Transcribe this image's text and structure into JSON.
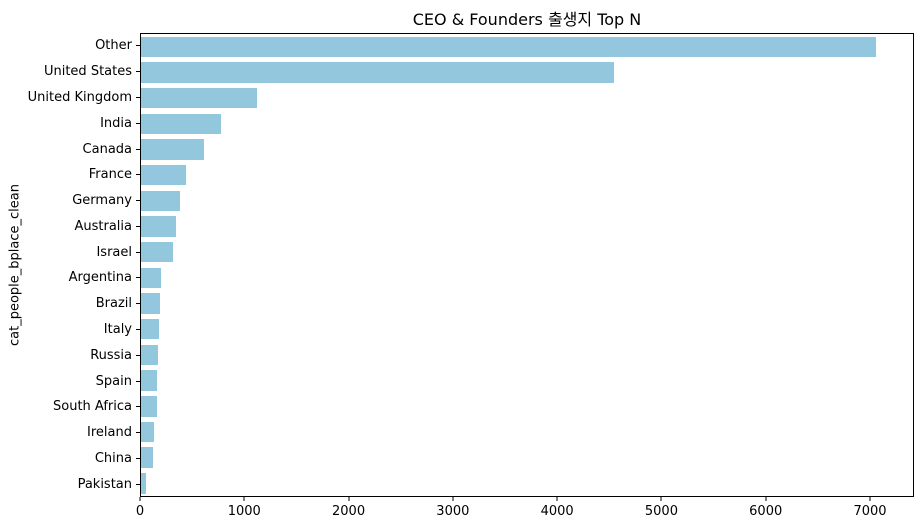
{
  "figure": {
    "background": "#ffffff",
    "axis_color": "#000000",
    "text_color": "#000000"
  },
  "chart_data": {
    "type": "bar",
    "orientation": "horizontal",
    "title": "CEO & Founders 출생지 Top N",
    "xlabel": "",
    "ylabel": "cat_people_bplace_clean",
    "categories": [
      "Other",
      "United States",
      "United Kingdom",
      "India",
      "Canada",
      "France",
      "Germany",
      "Australia",
      "Israel",
      "Argentina",
      "Brazil",
      "Italy",
      "Russia",
      "Spain",
      "South Africa",
      "Ireland",
      "China",
      "Pakistan"
    ],
    "values": [
      7070,
      4550,
      1120,
      770,
      605,
      430,
      375,
      335,
      310,
      195,
      185,
      175,
      165,
      155,
      150,
      125,
      115,
      50
    ],
    "bar_color": "#92C7DE",
    "xlim": [
      0,
      7422
    ],
    "x_ticks": [
      0,
      1000,
      2000,
      3000,
      4000,
      5000,
      6000,
      7000
    ],
    "grid": false,
    "legend": null
  }
}
